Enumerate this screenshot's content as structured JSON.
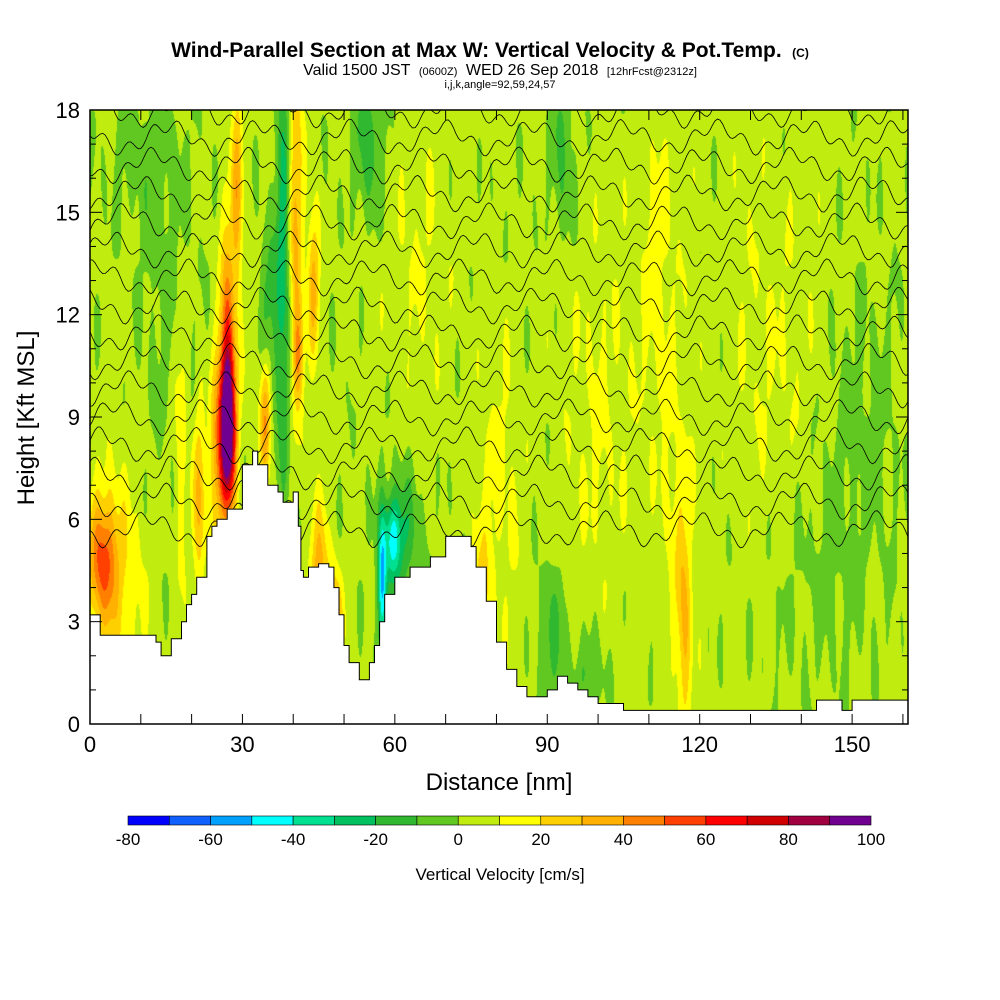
{
  "chart_data": {
    "type": "heatmap",
    "title": "Wind-Parallel Section at Max W: Vertical Velocity & Pot.Temp.",
    "title_mark": "(C)",
    "subtitle_main": "Valid 1500 JST",
    "subtitle_utc": "(0600Z)",
    "subtitle_date": "WED 26 Sep 2018",
    "subtitle_fcst": "[12hrFcst@2312z]",
    "subtitle2": "i,j,k,angle=92,59,24,57",
    "xlabel": "Distance [nm]",
    "ylabel": "Height [Kft MSL]",
    "xlim": [
      0,
      161
    ],
    "ylim": [
      0,
      18
    ],
    "xticks": [
      0,
      30,
      60,
      90,
      120,
      150
    ],
    "yticks": [
      0,
      3,
      6,
      9,
      12,
      15,
      18
    ],
    "grid": false,
    "colorbar": {
      "label": "Vertical Velocity [cm/s]",
      "ticks": [
        -80,
        -60,
        -40,
        -20,
        0,
        20,
        40,
        60,
        80,
        100
      ],
      "levels": [
        -80,
        -70,
        -60,
        -50,
        -40,
        -30,
        -20,
        -10,
        0,
        10,
        20,
        30,
        40,
        50,
        60,
        70,
        80,
        90,
        100
      ],
      "colors": [
        "#0000ff",
        "#1060ff",
        "#00a0ff",
        "#00ffff",
        "#00e090",
        "#00c060",
        "#30b830",
        "#60c820",
        "#c0ec10",
        "#ffff00",
        "#ffd000",
        "#ffb000",
        "#ff8000",
        "#ff4000",
        "#ff0000",
        "#d00000",
        "#a00040",
        "#700090"
      ]
    },
    "terrain_profile": {
      "x": [
        0,
        2,
        10,
        13,
        14,
        16,
        18,
        19,
        20,
        21,
        23,
        24,
        25,
        27,
        30,
        32,
        33,
        35,
        37,
        38,
        40,
        41,
        41.5,
        42,
        43,
        45,
        47,
        48,
        49,
        50,
        51,
        53,
        55,
        56,
        57,
        58,
        60,
        63,
        67,
        70,
        73,
        75,
        76,
        78,
        80,
        82,
        84,
        86,
        88,
        90,
        92,
        94,
        96,
        98,
        100,
        105,
        110,
        130,
        140,
        143,
        144,
        148,
        150,
        161
      ],
      "y": [
        3.2,
        2.6,
        2.6,
        2.4,
        2.0,
        2.5,
        3.0,
        3.5,
        3.8,
        4.3,
        5.5,
        5.8,
        6.0,
        6.3,
        7.6,
        8.0,
        7.6,
        7.0,
        6.8,
        6.5,
        6.8,
        5.8,
        4.5,
        4.3,
        4.6,
        4.7,
        4.6,
        4.0,
        3.2,
        2.3,
        1.8,
        1.3,
        1.8,
        2.3,
        3.0,
        3.8,
        4.3,
        4.6,
        4.9,
        5.5,
        5.5,
        5.2,
        4.6,
        3.6,
        2.4,
        1.6,
        1.1,
        0.8,
        0.8,
        1.0,
        1.4,
        1.2,
        1.0,
        0.8,
        0.6,
        0.4,
        0.4,
        0.4,
        0.4,
        0.7,
        0.7,
        0.4,
        0.7,
        0.7
      ]
    },
    "velocity_features": [
      {
        "x": 27,
        "y": 8.7,
        "sx": 1.2,
        "sy": 1.6,
        "w": 95
      },
      {
        "x": 27,
        "y": 10.5,
        "sx": 1.0,
        "sy": 3.0,
        "w": 45
      },
      {
        "x": 29,
        "y": 15.5,
        "sx": 0.8,
        "sy": 2.5,
        "w": 30
      },
      {
        "x": 34.5,
        "y": 9.2,
        "sx": 0.8,
        "sy": 1.4,
        "w": 45
      },
      {
        "x": 38,
        "y": 13.5,
        "sx": 1.0,
        "sy": 4.5,
        "w": -30
      },
      {
        "x": 35,
        "y": 11.5,
        "sx": 1.2,
        "sy": 2.0,
        "w": -20
      },
      {
        "x": 40.5,
        "y": 15.0,
        "sx": 1.0,
        "sy": 3.5,
        "w": 30
      },
      {
        "x": 44,
        "y": 13.0,
        "sx": 0.8,
        "sy": 1.5,
        "w": 32
      },
      {
        "x": 41,
        "y": 10.8,
        "sx": 0.8,
        "sy": 1.0,
        "w": 30
      },
      {
        "x": 45,
        "y": 3.8,
        "sx": 1.3,
        "sy": 1.8,
        "w": 35
      },
      {
        "x": 48,
        "y": 2.5,
        "sx": 1.2,
        "sy": 1.3,
        "w": 42
      },
      {
        "x": 57.5,
        "y": 4.0,
        "sx": 0.6,
        "sy": 1.4,
        "w": -55
      },
      {
        "x": 61,
        "y": 5.5,
        "sx": 2.5,
        "sy": 1.2,
        "w": -25
      },
      {
        "x": 59.5,
        "y": 5.4,
        "sx": 1.0,
        "sy": 0.8,
        "w": -30
      },
      {
        "x": 2.5,
        "y": 4.8,
        "sx": 2.0,
        "sy": 1.3,
        "w": 45
      },
      {
        "x": 6,
        "y": 4.0,
        "sx": 3.5,
        "sy": 2.5,
        "w": 15
      },
      {
        "x": 18,
        "y": 8.5,
        "sx": 1.0,
        "sy": 3.0,
        "w": 15
      },
      {
        "x": 21.5,
        "y": 6.5,
        "sx": 0.8,
        "sy": 2.0,
        "w": 30
      },
      {
        "x": 24.5,
        "y": 7.5,
        "sx": 0.8,
        "sy": 2.0,
        "w": 25
      },
      {
        "x": 77,
        "y": 3.0,
        "sx": 1.5,
        "sy": 2.0,
        "w": 20
      },
      {
        "x": 81,
        "y": 7.0,
        "sx": 3.0,
        "sy": 3.0,
        "w": 10
      },
      {
        "x": 91,
        "y": 2.5,
        "sx": 2.0,
        "sy": 1.5,
        "w": -15
      },
      {
        "x": 98.5,
        "y": 1.5,
        "sx": 2.0,
        "sy": 0.8,
        "w": -15
      },
      {
        "x": 117,
        "y": 2.5,
        "sx": 1.0,
        "sy": 2.0,
        "w": 25
      },
      {
        "x": 116,
        "y": 5.5,
        "sx": 2.0,
        "sy": 2.5,
        "w": 12
      },
      {
        "x": 55,
        "y": 17.0,
        "sx": 2.0,
        "sy": 1.5,
        "w": -20
      },
      {
        "x": 93,
        "y": 17.0,
        "sx": 1.5,
        "sy": 2.0,
        "w": -15
      },
      {
        "x": 112,
        "y": 13.0,
        "sx": 3.0,
        "sy": 4.0,
        "w": 10
      },
      {
        "x": 135,
        "y": 11.0,
        "sx": 8.0,
        "sy": 4.0,
        "w": 7
      },
      {
        "x": 150,
        "y": 9.0,
        "sx": 6.0,
        "sy": 3.0,
        "w": -7
      },
      {
        "x": 100,
        "y": 9.0,
        "sx": 5.0,
        "sy": 4.0,
        "w": 8
      },
      {
        "x": 143,
        "y": 4.0,
        "sx": 8.0,
        "sy": 2.0,
        "w": -5
      },
      {
        "x": 65,
        "y": 14.0,
        "sx": 5.0,
        "sy": 3.0,
        "w": 7
      },
      {
        "x": 15,
        "y": 13.0,
        "sx": 4.0,
        "sy": 4.0,
        "w": -6
      },
      {
        "x": 10,
        "y": 16.5,
        "sx": 5.0,
        "sy": 1.5,
        "w": -6
      }
    ],
    "theta_contours": [
      {
        "label": "",
        "base": 8.1
      },
      {
        "label": "",
        "base": 6.1
      },
      {
        "label": "",
        "base": 5.2
      },
      {
        "label": "",
        "base": 4.3
      },
      {
        "label": "",
        "base": 3.8
      },
      {
        "label": "",
        "base": 3.3
      },
      {
        "label": "",
        "base": 2.9
      },
      {
        "label": "",
        "base": 2.5
      },
      {
        "label": "",
        "base": 2.1
      },
      {
        "label": "",
        "base": 1.7
      },
      {
        "label": "",
        "base": 1.3
      },
      {
        "label": "",
        "base": 0.9
      },
      {
        "label": "",
        "base": 0.5
      },
      {
        "label": "",
        "base": 0.1
      },
      {
        "label": "",
        "base": -0.3
      },
      {
        "label": "",
        "base": -0.7
      },
      {
        "label": "",
        "base": -1.1
      },
      {
        "label": "",
        "base": -1.5
      },
      {
        "label": "",
        "base": -1.9
      },
      {
        "label": "",
        "base": -2.3
      },
      {
        "label": "",
        "base": -2.7
      },
      {
        "label": "",
        "base": -3.1
      },
      {
        "label": "",
        "base": -3.5
      },
      {
        "label": "",
        "base": -3.9
      },
      {
        "label": "",
        "base": -4.3
      },
      {
        "label": "",
        "base": -4.7
      },
      {
        "label": "",
        "base": -5.1
      },
      {
        "label": "",
        "base": -5.5
      },
      {
        "label": "",
        "base": -5.9
      },
      {
        "label": "",
        "base": -6.3
      }
    ]
  }
}
